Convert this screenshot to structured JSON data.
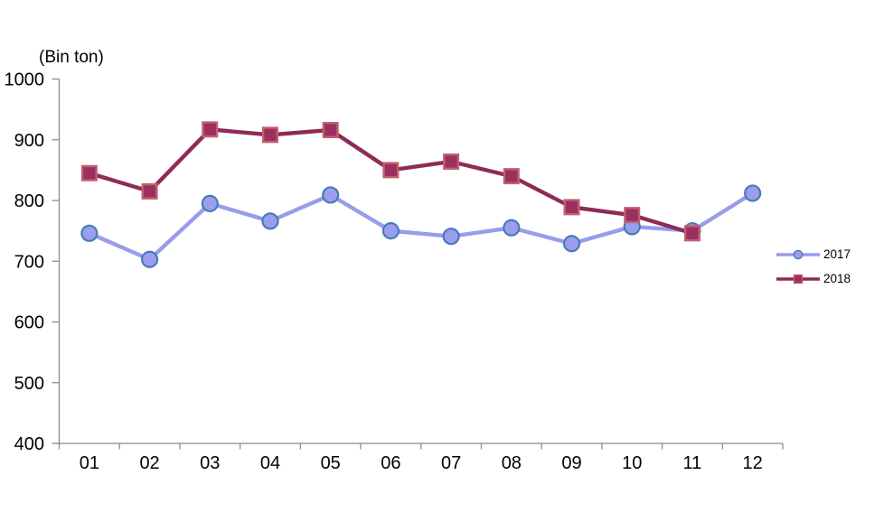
{
  "chart_data": {
    "type": "line",
    "unit_label": "(Bin ton)",
    "categories": [
      "01",
      "02",
      "03",
      "04",
      "05",
      "06",
      "07",
      "08",
      "09",
      "10",
      "11",
      "12"
    ],
    "series": [
      {
        "name": "2017",
        "values": [
          746,
          703,
          795,
          766,
          809,
          750,
          741,
          755,
          729,
          757,
          750,
          812
        ],
        "line_color": "#999CE9",
        "marker": "circle",
        "marker_fill": "#9B9EEC",
        "marker_stroke": "#4A7AB8"
      },
      {
        "name": "2018",
        "values": [
          845,
          815,
          917,
          908,
          916,
          850,
          864,
          840,
          789,
          776,
          746
        ],
        "line_color": "#8E2B57",
        "marker": "square",
        "marker_fill": "#9C2F62",
        "marker_stroke": "#C2606B"
      }
    ],
    "ylim": [
      400,
      1000
    ],
    "y_ticks": [
      400,
      500,
      600,
      700,
      800,
      900,
      1000
    ],
    "xlabel": "",
    "ylabel": "",
    "grid": false,
    "legend_position": "right",
    "axis_color": "#8C8C8C",
    "text_color": "#000000",
    "background": "#FFFFFF"
  }
}
